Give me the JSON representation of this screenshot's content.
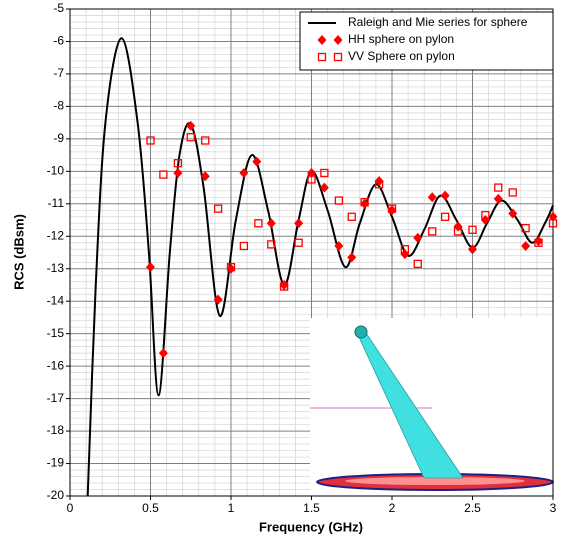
{
  "chart_data": {
    "type": "line",
    "x_label": "Frequency (GHz)",
    "y_label": "RCS (dBsm)",
    "xlim": [
      0,
      3
    ],
    "ylim": [
      -20,
      -5
    ],
    "xticks": [
      0,
      0.5,
      1,
      1.5,
      2,
      2.5,
      3
    ],
    "yticks": [
      -5,
      -6,
      -7,
      -8,
      -9,
      -10,
      -11,
      -12,
      -13,
      -14,
      -15,
      -16,
      -17,
      -18,
      -19,
      -20
    ],
    "grid": true,
    "minor_grid": true,
    "legend": "upper right",
    "series": [
      {
        "name": "Raleigh and Mie series for sphere",
        "color": "#000000",
        "marker": "line",
        "x": [
          0.11,
          0.16,
          0.22,
          0.32,
          0.42,
          0.49,
          0.55,
          0.62,
          0.68,
          0.75,
          0.83,
          0.93,
          1.03,
          1.13,
          1.23,
          1.33,
          1.42,
          1.5,
          1.6,
          1.71,
          1.8,
          1.9,
          2.0,
          2.1,
          2.2,
          2.3,
          2.4,
          2.5,
          2.59,
          2.68,
          2.78,
          2.87,
          2.95,
          3.0
        ],
        "values": [
          -20,
          -13.5,
          -8.5,
          -5.9,
          -8.5,
          -12.5,
          -16.9,
          -12.5,
          -9.5,
          -8.55,
          -10.5,
          -14.45,
          -11.5,
          -9.5,
          -11.2,
          -13.5,
          -11.5,
          -10.0,
          -11.2,
          -12.95,
          -11.6,
          -10.4,
          -11.4,
          -12.6,
          -11.8,
          -10.75,
          -11.5,
          -12.35,
          -11.6,
          -10.9,
          -11.5,
          -12.2,
          -11.6,
          -11.05
        ]
      },
      {
        "name": "HH sphere on pylon",
        "color": "#ff0000",
        "marker": "diamond",
        "x": [
          0.5,
          0.58,
          0.67,
          0.75,
          0.84,
          0.92,
          1.0,
          1.08,
          1.16,
          1.25,
          1.33,
          1.42,
          1.5,
          1.58,
          1.67,
          1.75,
          1.83,
          1.92,
          2.0,
          2.08,
          2.16,
          2.25,
          2.33,
          2.41,
          2.5,
          2.58,
          2.66,
          2.75,
          2.83,
          2.91,
          3.0
        ],
        "values": [
          -12.95,
          -15.6,
          -10.05,
          -8.6,
          -10.15,
          -13.95,
          -13.0,
          -10.05,
          -9.7,
          -11.6,
          -13.5,
          -11.6,
          -10.05,
          -10.5,
          -12.3,
          -12.65,
          -11.0,
          -10.3,
          -11.2,
          -12.55,
          -12.05,
          -10.8,
          -10.75,
          -11.7,
          -12.4,
          -11.5,
          -10.85,
          -11.3,
          -12.3,
          -12.15,
          -11.4
        ]
      },
      {
        "name": "VV Sphere on pylon",
        "color": "#ff0000",
        "marker": "square",
        "x": [
          0.5,
          0.58,
          0.67,
          0.75,
          0.84,
          0.92,
          1.0,
          1.08,
          1.17,
          1.25,
          1.33,
          1.42,
          1.5,
          1.58,
          1.67,
          1.75,
          1.83,
          1.92,
          2.0,
          2.08,
          2.16,
          2.25,
          2.33,
          2.41,
          2.5,
          2.58,
          2.66,
          2.75,
          2.83,
          2.91,
          3.0
        ],
        "values": [
          -9.05,
          -10.1,
          -9.75,
          -8.95,
          -9.05,
          -11.15,
          -12.95,
          -12.3,
          -11.6,
          -12.25,
          -13.55,
          -12.2,
          -10.25,
          -10.05,
          -10.9,
          -11.4,
          -10.95,
          -10.4,
          -11.15,
          -12.4,
          -12.85,
          -11.85,
          -11.4,
          -11.85,
          -11.8,
          -11.35,
          -10.5,
          -10.65,
          -11.75,
          -12.2,
          -11.6
        ]
      }
    ]
  }
}
